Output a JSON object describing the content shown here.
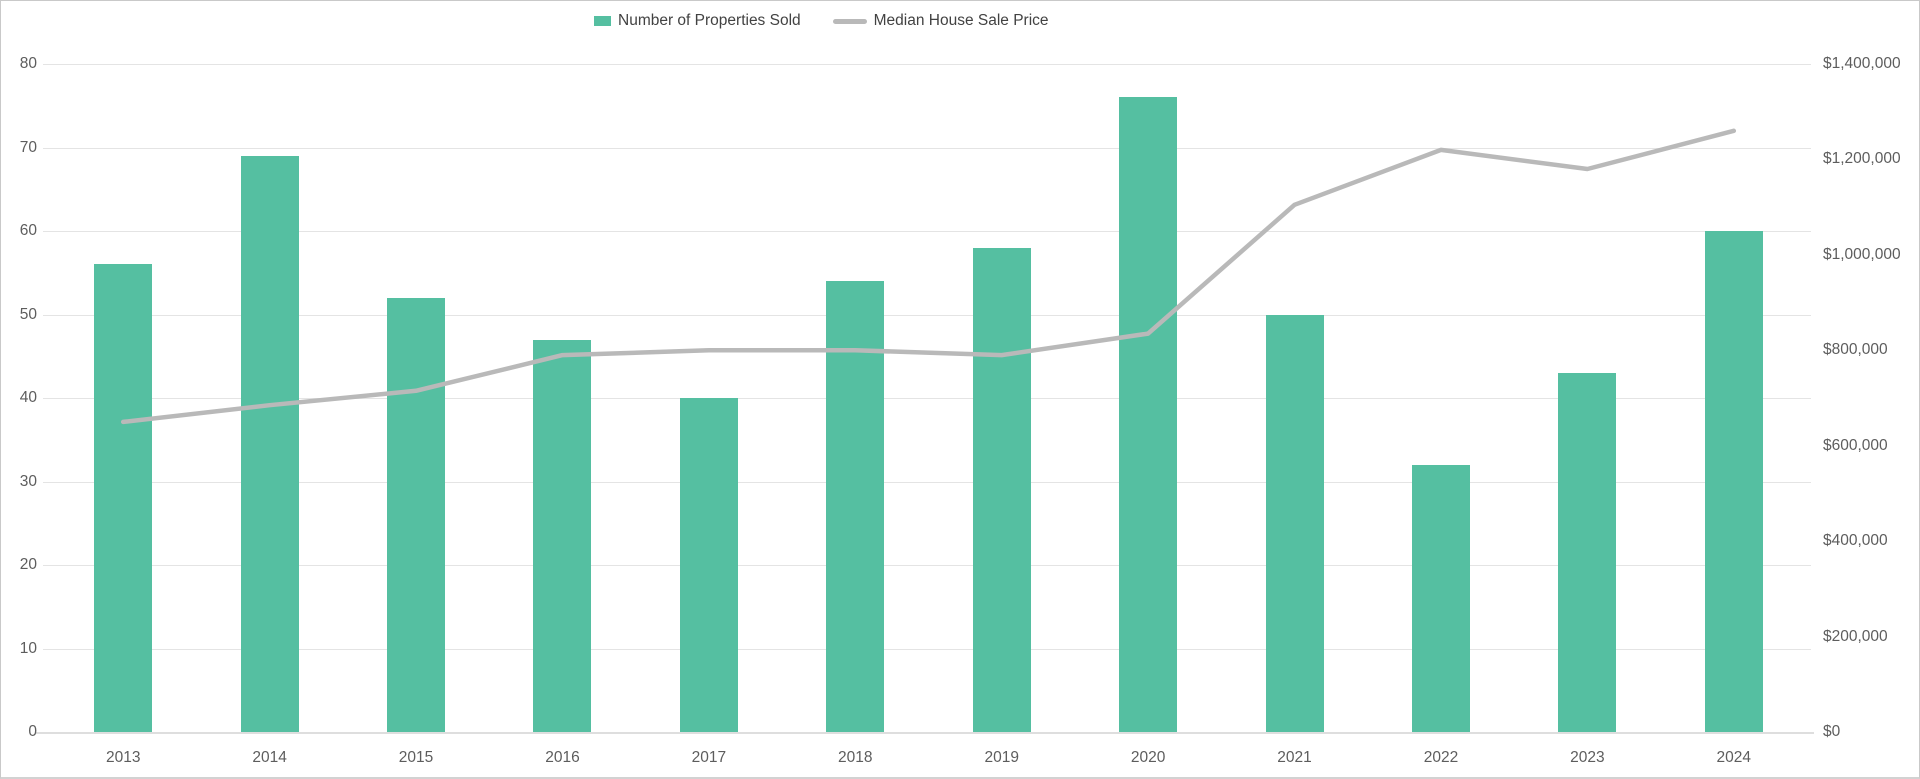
{
  "legend": [
    {
      "label": "Number of Properties Sold",
      "type": "bar",
      "color": "#55bfa1"
    },
    {
      "label": "Median House Sale Price",
      "type": "line",
      "color": "#b9b9b9"
    }
  ],
  "colors": {
    "bar": "#55bfa1",
    "line": "#b9b9b9",
    "gridline": "#e4e4e4",
    "axis_text": "#5d5d5d",
    "legend_text": "#424242",
    "background": "#ffffff"
  },
  "chart_data": {
    "type": "bar",
    "subtype": "combo bar + line, dual y-axes",
    "title": "",
    "xlabel": "",
    "ylabel_left": "",
    "ylabel_right": "",
    "grid": true,
    "legend_position": "top-center",
    "categories": [
      "2013",
      "2014",
      "2015",
      "2016",
      "2017",
      "2018",
      "2019",
      "2020",
      "2021",
      "2022",
      "2023",
      "2024"
    ],
    "series": [
      {
        "name": "Number of Properties Sold",
        "type": "bar",
        "axis": "left",
        "color": "#55bfa1",
        "values": [
          56,
          69,
          52,
          47,
          40,
          54,
          58,
          76,
          50,
          32,
          43,
          60
        ]
      },
      {
        "name": "Median House Sale Price",
        "type": "line",
        "axis": "right",
        "color": "#b9b9b9",
        "values": [
          650000,
          685000,
          715000,
          790000,
          800000,
          800000,
          790000,
          835000,
          1105000,
          1220000,
          1180000,
          1260000
        ]
      }
    ],
    "left_axis": {
      "min": 0,
      "max": 80,
      "step": 10,
      "tick_labels": [
        "80",
        "70",
        "60",
        "50",
        "40",
        "30",
        "20",
        "10",
        "0"
      ]
    },
    "right_axis": {
      "min": 0,
      "max": 1400000,
      "step": 200000,
      "tick_labels": [
        "$1,400,000",
        "$1,200,000",
        "$1,000,000",
        "$800,000",
        "$600,000",
        "$400,000",
        "$200,000",
        "$0"
      ]
    }
  }
}
